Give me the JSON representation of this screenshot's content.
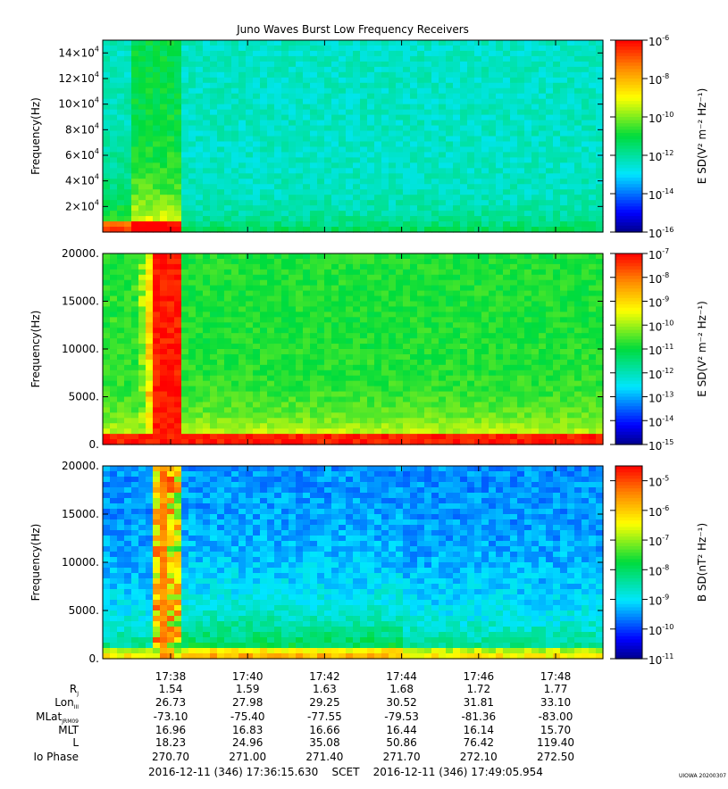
{
  "chart_data": {
    "type": "heatmap",
    "title": "Juno Waves Burst Low Frequency Receivers",
    "x_ticks": [
      "17:38",
      "17:40",
      "17:42",
      "17:44",
      "17:46",
      "17:48"
    ],
    "panels": [
      {
        "ylabel": "Frequency(Hz)",
        "ylim": [
          0,
          150000
        ],
        "yticks": [
          {
            "base": "2×10",
            "exp": "4"
          },
          {
            "base": "4×10",
            "exp": "4"
          },
          {
            "base": "6×10",
            "exp": "4"
          },
          {
            "base": "8×10",
            "exp": "4"
          },
          {
            "base": "10×10",
            "exp": "4"
          },
          {
            "base": "12×10",
            "exp": "4"
          },
          {
            "base": "14×10",
            "exp": "4"
          }
        ],
        "ytick_values": [
          20000,
          40000,
          60000,
          80000,
          100000,
          120000,
          140000
        ],
        "colorbar_label": "E SD(V² m⁻² Hz⁻¹)",
        "colorbar_exponents": [
          "-6",
          "-8",
          "-10",
          "-12",
          "-14",
          "-16"
        ],
        "colorbar_range_log10": [
          -16,
          -6
        ]
      },
      {
        "ylabel": "Frequency(Hz)",
        "ylim": [
          0,
          20000
        ],
        "yticks": [
          "0.",
          "5000.",
          "10000.",
          "15000.",
          "20000."
        ],
        "ytick_values": [
          0,
          5000,
          10000,
          15000,
          20000
        ],
        "colorbar_label": "E SD(V² m⁻² Hz⁻¹)",
        "colorbar_exponents": [
          "-7",
          "-8",
          "-9",
          "-10",
          "-11",
          "-12",
          "-13",
          "-14",
          "-15"
        ],
        "colorbar_range_log10": [
          -15,
          -7
        ]
      },
      {
        "ylabel": "Frequency(Hz)",
        "ylim": [
          0,
          20000
        ],
        "yticks": [
          "0.",
          "5000.",
          "10000.",
          "15000.",
          "20000."
        ],
        "ytick_values": [
          0,
          5000,
          10000,
          15000,
          20000
        ],
        "colorbar_label": "B SD(nT² Hz⁻¹)",
        "colorbar_exponents": [
          "-5",
          "-6",
          "-7",
          "-8",
          "-9",
          "-10",
          "-11"
        ],
        "colorbar_range_log10": [
          -11,
          -4.5
        ]
      }
    ],
    "ephemeris": {
      "rows": [
        {
          "label": "R",
          "sub": "J",
          "values": [
            "1.54",
            "1.59",
            "1.63",
            "1.68",
            "1.72",
            "1.77"
          ]
        },
        {
          "label": "Lon",
          "sub": "III",
          "values": [
            "26.73",
            "27.98",
            "29.25",
            "30.52",
            "31.81",
            "33.10"
          ]
        },
        {
          "label": "MLat",
          "sub": "JRM09",
          "values": [
            "-73.10",
            "-75.40",
            "-77.55",
            "-79.53",
            "-81.36",
            "-83.00"
          ]
        },
        {
          "label": "MLT",
          "sub": "",
          "values": [
            "16.96",
            "16.83",
            "16.66",
            "16.44",
            "16.14",
            "15.70"
          ]
        },
        {
          "label": "L",
          "sub": "",
          "values": [
            "18.23",
            "24.96",
            "35.08",
            "50.86",
            "76.42",
            "119.40"
          ]
        },
        {
          "label": "Io Phase",
          "sub": "",
          "values": [
            "270.70",
            "271.00",
            "271.40",
            "271.70",
            "272.10",
            "272.50"
          ]
        }
      ]
    },
    "time_range": "2016-12-11 (346) 17:36:15.630    SCET    2016-12-11 (346) 17:49:05.954",
    "credit": "UIOWA 20200307"
  }
}
